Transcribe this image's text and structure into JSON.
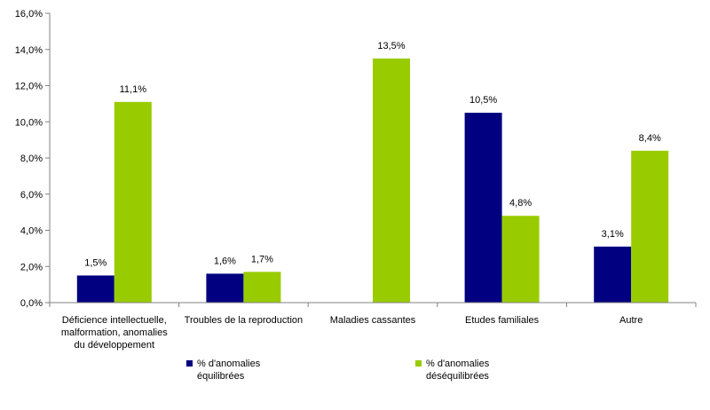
{
  "chart_data": {
    "type": "bar",
    "categories": [
      [
        "Déficience intellectuelle,",
        "malformation,  anomalies",
        "du développement"
      ],
      [
        "Troubles de la reproduction"
      ],
      [
        "Maladies cassantes"
      ],
      [
        "Etudes familiales"
      ],
      [
        "Autre"
      ]
    ],
    "series": [
      {
        "name": "% d'anomalies équilibrées",
        "legend_lines": [
          "% d'anomalies",
          "équilibrées"
        ],
        "color": "#000080",
        "values": [
          1.5,
          1.6,
          null,
          10.5,
          3.1
        ],
        "labels": [
          "1,5%",
          "1,6%",
          null,
          "10,5%",
          "3,1%"
        ]
      },
      {
        "name": "% d'anomalies déséquilibrées",
        "legend_lines": [
          "% d'anomalies",
          "déséquilibrées"
        ],
        "color": "#99CC00",
        "values": [
          11.1,
          1.7,
          13.5,
          4.8,
          8.4
        ],
        "labels": [
          "11,1%",
          "1,7%",
          "13,5%",
          "4,8%",
          "8,4%"
        ]
      }
    ],
    "ylim": [
      0,
      16
    ],
    "yticks": [
      0,
      2,
      4,
      6,
      8,
      10,
      12,
      14,
      16
    ],
    "ytick_labels": [
      "0,0%",
      "2,0%",
      "4,0%",
      "6,0%",
      "8,0%",
      "10,0%",
      "12,0%",
      "14,0%",
      "16,0%"
    ],
    "grid": false,
    "legend_position": "bottom",
    "title": "",
    "xlabel": "",
    "ylabel": ""
  }
}
